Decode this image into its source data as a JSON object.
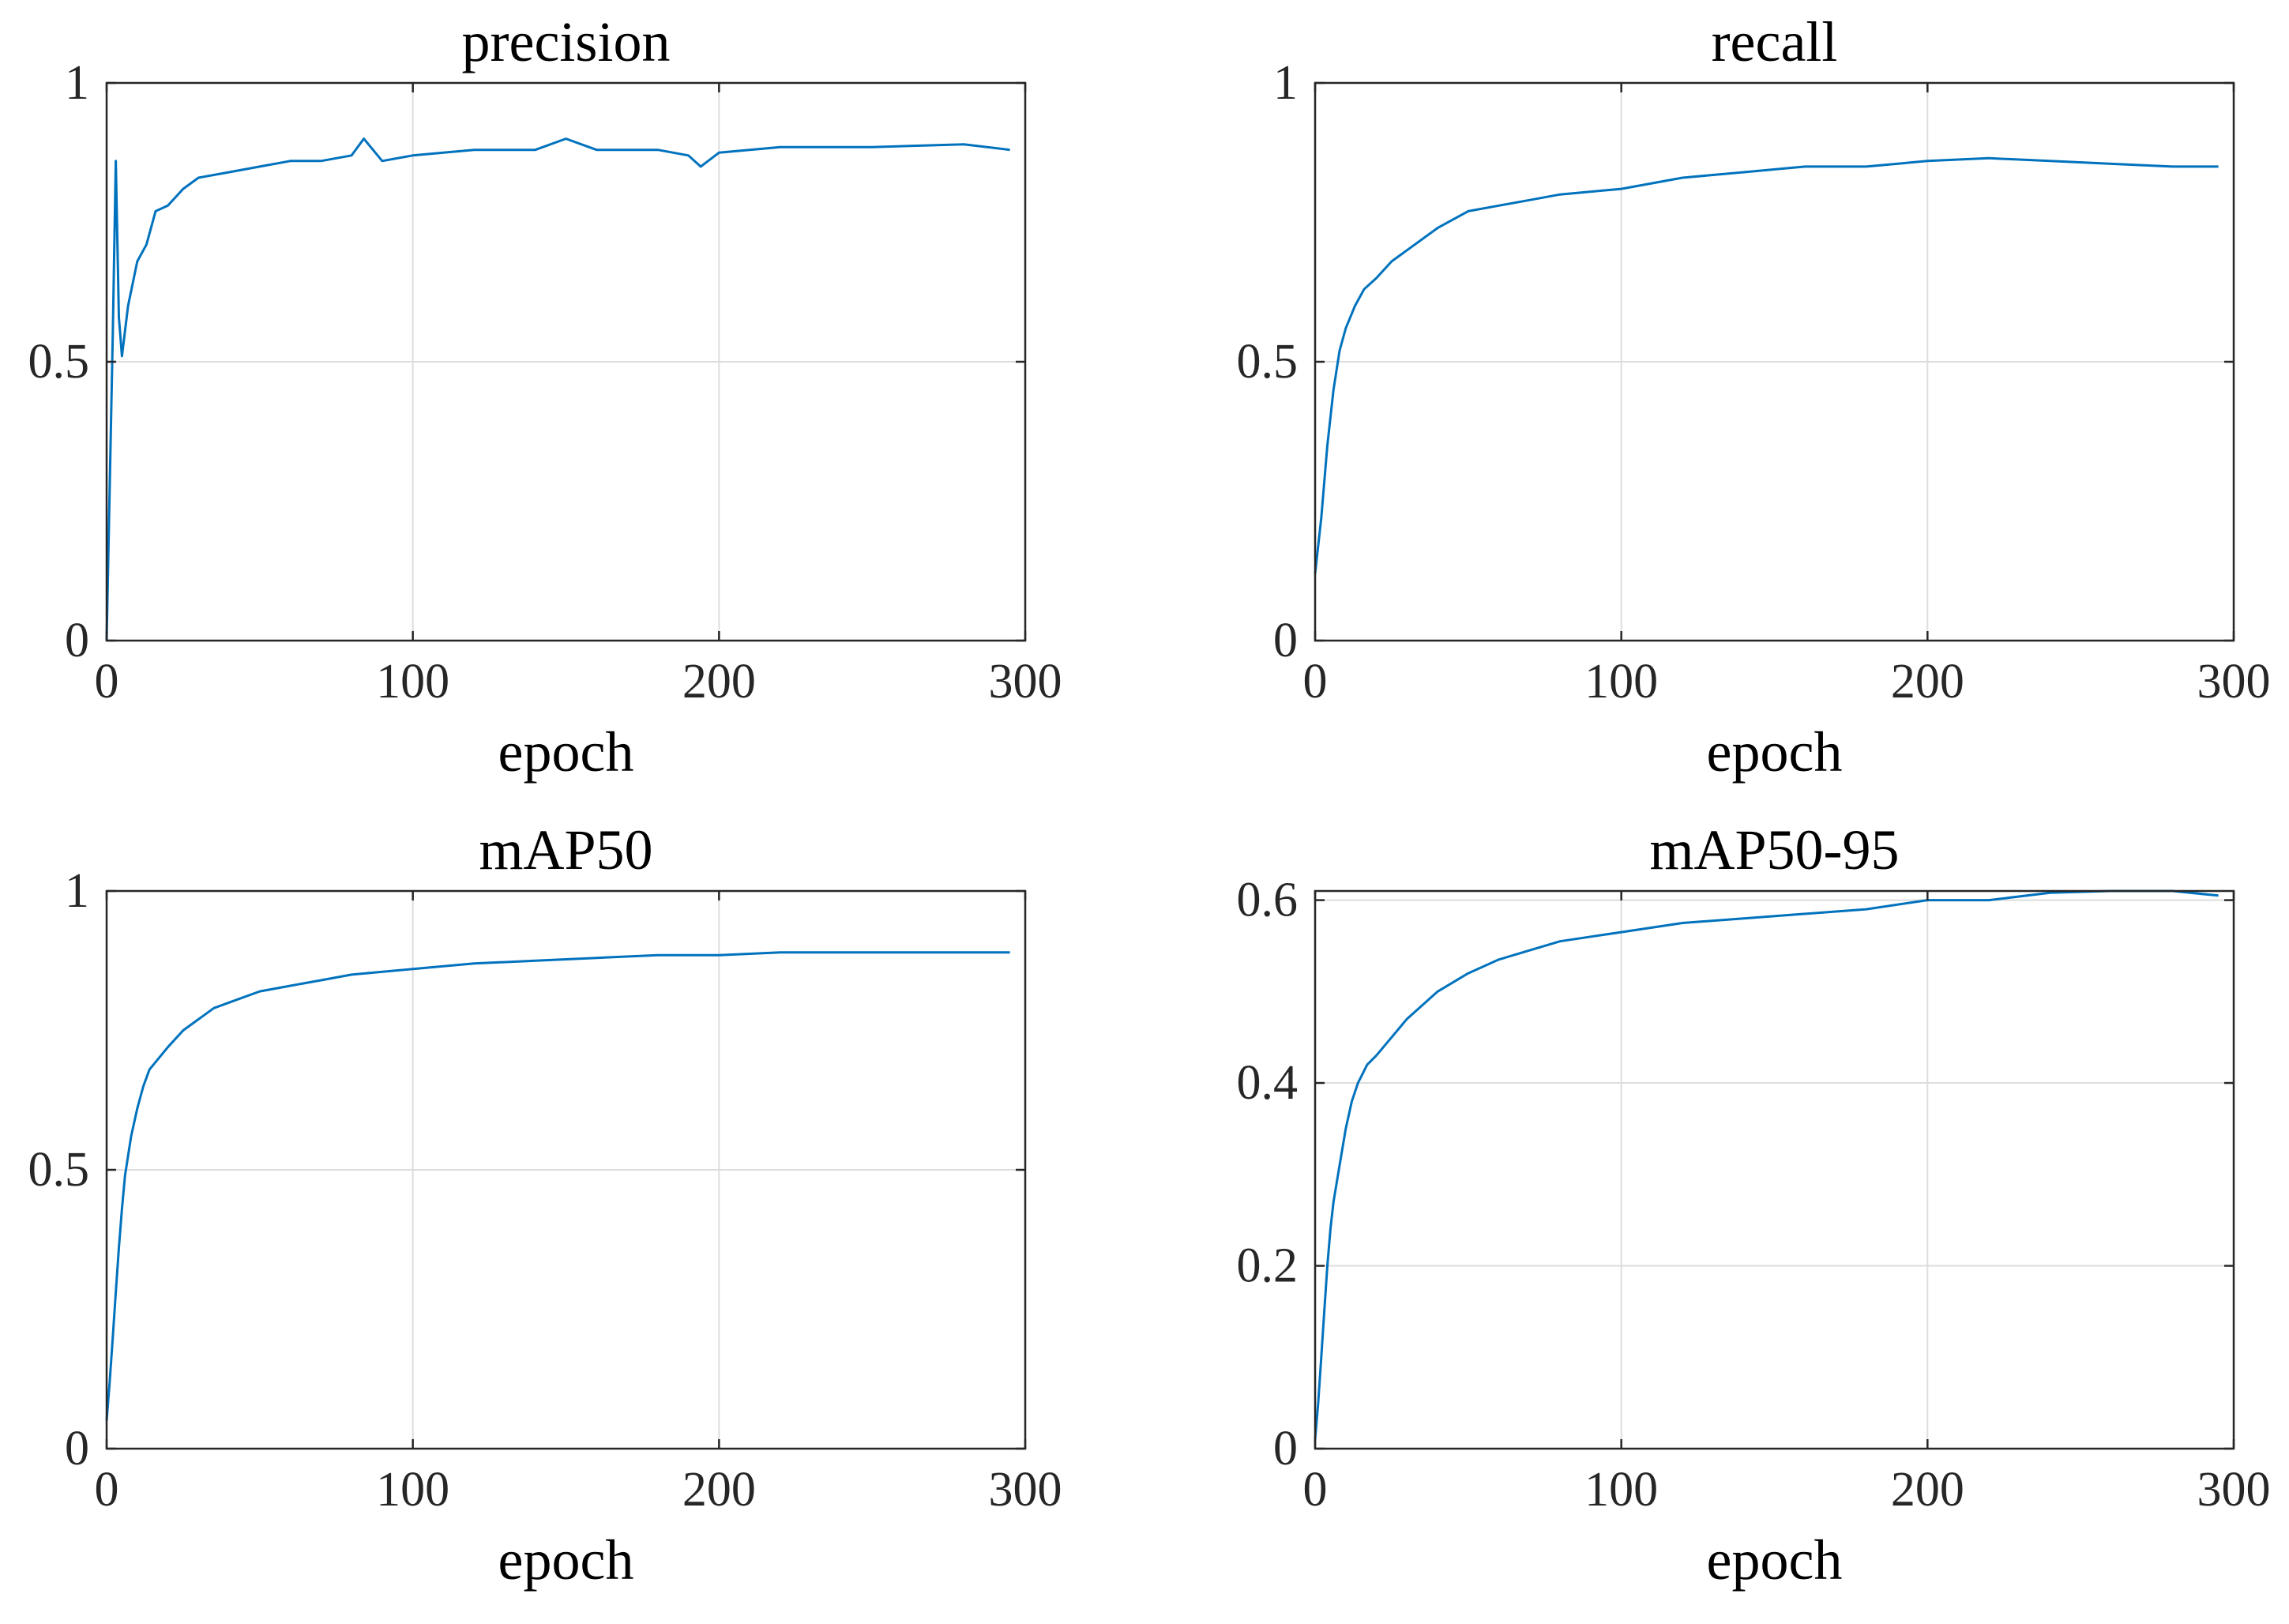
{
  "figure": {
    "line_color": "#0072BD",
    "grid_color": "#dddddd",
    "axis_color": "#262626"
  },
  "chart_data": [
    {
      "type": "line",
      "title": "precision",
      "xlabel": "epoch",
      "ylabel": "",
      "xlim": [
        0,
        300
      ],
      "ylim": [
        0,
        1
      ],
      "xticks": [
        0,
        100,
        200,
        300
      ],
      "xtick_labels": [
        "0",
        "100",
        "200",
        "300"
      ],
      "yticks": [
        0,
        0.5,
        1
      ],
      "ytick_labels": [
        "0",
        "0.5",
        "1"
      ],
      "grid": true,
      "series": [
        {
          "name": "precision",
          "x": [
            0,
            2,
            3,
            4,
            5,
            7,
            10,
            13,
            16,
            20,
            25,
            30,
            40,
            50,
            60,
            70,
            80,
            84,
            90,
            100,
            120,
            140,
            150,
            160,
            180,
            190,
            194,
            200,
            220,
            250,
            280,
            295
          ],
          "y": [
            0.0,
            0.55,
            0.86,
            0.58,
            0.51,
            0.6,
            0.68,
            0.71,
            0.77,
            0.78,
            0.81,
            0.83,
            0.84,
            0.85,
            0.86,
            0.86,
            0.87,
            0.9,
            0.86,
            0.87,
            0.88,
            0.88,
            0.9,
            0.88,
            0.88,
            0.87,
            0.85,
            0.875,
            0.885,
            0.885,
            0.89,
            0.88
          ]
        }
      ]
    },
    {
      "type": "line",
      "title": "recall",
      "xlabel": "epoch",
      "ylabel": "",
      "xlim": [
        0,
        300
      ],
      "ylim": [
        0,
        1
      ],
      "xticks": [
        0,
        100,
        200,
        300
      ],
      "xtick_labels": [
        "0",
        "100",
        "200",
        "300"
      ],
      "yticks": [
        0,
        0.5,
        1
      ],
      "ytick_labels": [
        "0",
        "0.5",
        "1"
      ],
      "grid": true,
      "series": [
        {
          "name": "recall",
          "x": [
            0,
            2,
            4,
            6,
            8,
            10,
            13,
            16,
            20,
            25,
            30,
            40,
            50,
            60,
            70,
            80,
            100,
            120,
            140,
            160,
            180,
            200,
            220,
            240,
            260,
            280,
            295
          ],
          "y": [
            0.12,
            0.22,
            0.35,
            0.45,
            0.52,
            0.56,
            0.6,
            0.63,
            0.65,
            0.68,
            0.7,
            0.74,
            0.77,
            0.78,
            0.79,
            0.8,
            0.81,
            0.83,
            0.84,
            0.85,
            0.85,
            0.86,
            0.865,
            0.86,
            0.855,
            0.85,
            0.85
          ]
        }
      ]
    },
    {
      "type": "line",
      "title": "mAP50",
      "xlabel": "epoch",
      "ylabel": "",
      "xlim": [
        0,
        300
      ],
      "ylim": [
        0,
        1
      ],
      "xticks": [
        0,
        100,
        200,
        300
      ],
      "xtick_labels": [
        "0",
        "100",
        "200",
        "300"
      ],
      "yticks": [
        0,
        0.5,
        1
      ],
      "ytick_labels": [
        "0",
        "0.5",
        "1"
      ],
      "grid": true,
      "series": [
        {
          "name": "mAP50",
          "x": [
            0,
            1,
            2,
            3,
            4,
            5,
            6,
            8,
            10,
            12,
            14,
            17,
            20,
            25,
            30,
            35,
            40,
            50,
            60,
            70,
            80,
            100,
            120,
            140,
            160,
            180,
            200,
            220,
            240,
            260,
            280,
            295
          ],
          "y": [
            0.05,
            0.12,
            0.2,
            0.28,
            0.36,
            0.43,
            0.49,
            0.56,
            0.61,
            0.65,
            0.68,
            0.7,
            0.72,
            0.75,
            0.77,
            0.79,
            0.8,
            0.82,
            0.83,
            0.84,
            0.85,
            0.86,
            0.87,
            0.875,
            0.88,
            0.885,
            0.885,
            0.89,
            0.89,
            0.89,
            0.89,
            0.89
          ]
        }
      ]
    },
    {
      "type": "line",
      "title": "mAP50-95",
      "xlabel": "epoch",
      "ylabel": "",
      "xlim": [
        0,
        300
      ],
      "ylim": [
        0,
        0.61
      ],
      "xticks": [
        0,
        100,
        200,
        300
      ],
      "xtick_labels": [
        "0",
        "100",
        "200",
        "300"
      ],
      "yticks": [
        0,
        0.2,
        0.4,
        0.6
      ],
      "ytick_labels": [
        "0",
        "0.2",
        "0.4",
        "0.6"
      ],
      "grid": true,
      "series": [
        {
          "name": "mAP50-95",
          "x": [
            0,
            1,
            2,
            3,
            4,
            5,
            6,
            8,
            10,
            12,
            14,
            17,
            20,
            25,
            30,
            40,
            50,
            60,
            70,
            80,
            100,
            120,
            140,
            160,
            180,
            200,
            220,
            240,
            260,
            280,
            295
          ],
          "y": [
            0.01,
            0.05,
            0.1,
            0.15,
            0.2,
            0.24,
            0.27,
            0.31,
            0.35,
            0.38,
            0.4,
            0.42,
            0.43,
            0.45,
            0.47,
            0.5,
            0.52,
            0.535,
            0.545,
            0.555,
            0.565,
            0.575,
            0.58,
            0.585,
            0.59,
            0.6,
            0.6,
            0.608,
            0.61,
            0.61,
            0.605
          ]
        }
      ]
    }
  ]
}
